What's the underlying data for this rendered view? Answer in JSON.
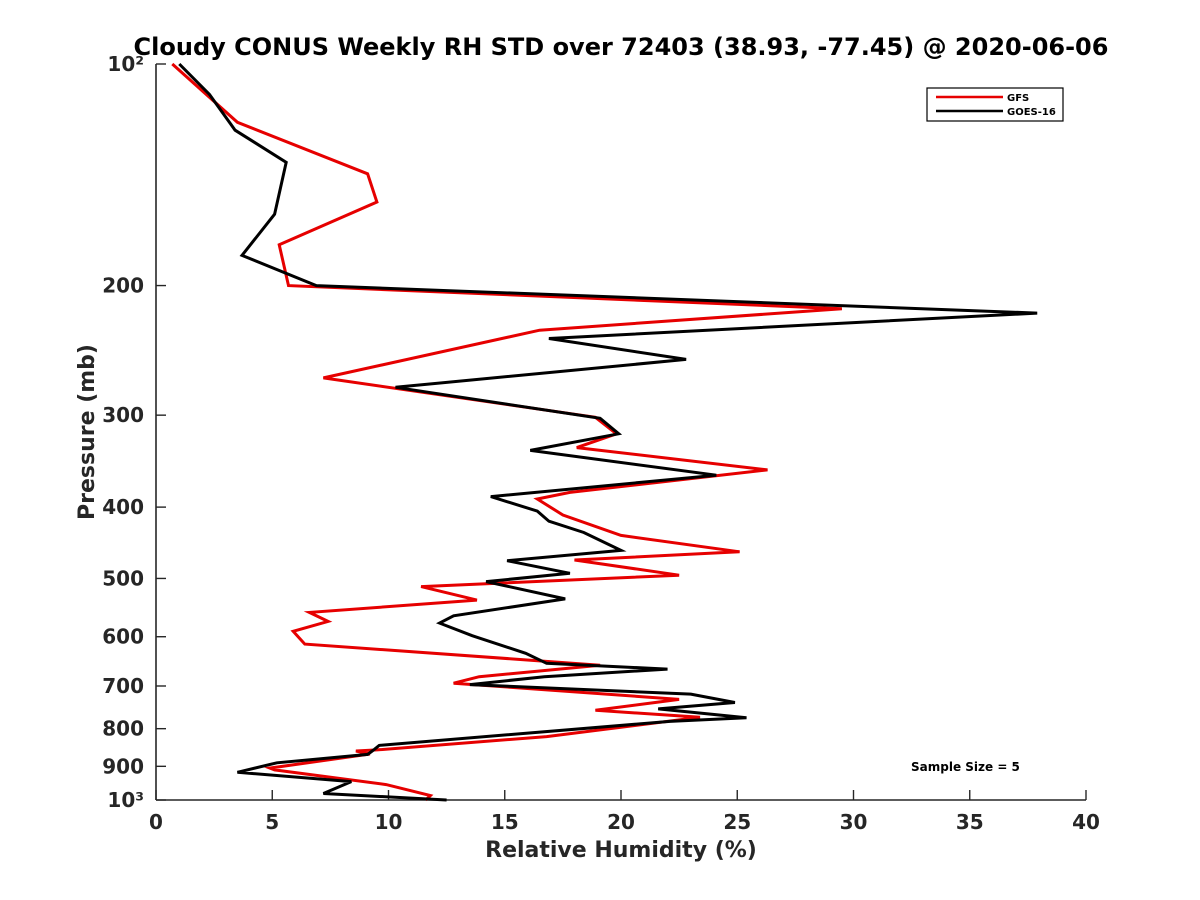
{
  "chart_data": {
    "type": "line",
    "title": "Cloudy CONUS Weekly RH STD over 72403 (38.93, -77.45) @ 2020-06-06",
    "xlabel": "Relative Humidity (%)",
    "ylabel": "Pressure (mb)",
    "xlim": [
      0,
      40
    ],
    "ylim": [
      100,
      1000
    ],
    "y_scale": "log",
    "y_reversed": true,
    "x_ticks": [
      0,
      5,
      10,
      15,
      20,
      25,
      30,
      35,
      40
    ],
    "x_tick_labels": [
      "0",
      "5",
      "10",
      "15",
      "20",
      "25",
      "30",
      "35",
      "40"
    ],
    "y_ticks": [
      100,
      200,
      300,
      400,
      500,
      600,
      700,
      800,
      900,
      1000
    ],
    "y_tick_labels": [
      "10²",
      "200",
      "300",
      "400",
      "500",
      "600",
      "700",
      "800",
      "900",
      "10³"
    ],
    "grid": false,
    "legend_position": "top-right",
    "series": [
      {
        "name": "GFS",
        "color": "#e60000",
        "points": [
          [
            0.7,
            100
          ],
          [
            3.5,
            120
          ],
          [
            9.1,
            141
          ],
          [
            9.5,
            154
          ],
          [
            5.3,
            176
          ],
          [
            5.7,
            200
          ],
          [
            29.5,
            215
          ],
          [
            16.5,
            230
          ],
          [
            7.2,
            267
          ],
          [
            18.9,
            302
          ],
          [
            19.8,
            318
          ],
          [
            18.1,
            332
          ],
          [
            26.3,
            356
          ],
          [
            17.8,
            382
          ],
          [
            16.4,
            390
          ],
          [
            17.5,
            410
          ],
          [
            20,
            437
          ],
          [
            25.1,
            460
          ],
          [
            18,
            472
          ],
          [
            22.5,
            495
          ],
          [
            11.4,
            513
          ],
          [
            13.8,
            535
          ],
          [
            6.6,
            556
          ],
          [
            7.4,
            572
          ],
          [
            5.9,
            590
          ],
          [
            6.4,
            614
          ],
          [
            19.1,
            656
          ],
          [
            13.9,
            680
          ],
          [
            12.8,
            694
          ],
          [
            22.5,
            730
          ],
          [
            18.9,
            755
          ],
          [
            23.4,
            772
          ],
          [
            16.8,
            820
          ],
          [
            9.5,
            855
          ],
          [
            8.6,
            858
          ],
          [
            9.2,
            866
          ],
          [
            4.9,
            905
          ],
          [
            5.1,
            910
          ],
          [
            9.9,
            953
          ],
          [
            11,
            972
          ],
          [
            11.8,
            986
          ],
          [
            11.6,
            1000
          ]
        ]
      },
      {
        "name": "GOES-16",
        "color": "#000000",
        "points": [
          [
            1,
            100
          ],
          [
            2.3,
            110
          ],
          [
            3.4,
            123
          ],
          [
            5.6,
            136
          ],
          [
            5.1,
            160
          ],
          [
            3.7,
            182
          ],
          [
            6.9,
            200
          ],
          [
            37.9,
            218
          ],
          [
            16.9,
            236
          ],
          [
            22.8,
            252
          ],
          [
            10.3,
            275
          ],
          [
            19.1,
            303
          ],
          [
            19.9,
            318
          ],
          [
            16.1,
            335
          ],
          [
            24.1,
            362
          ],
          [
            14.4,
            387
          ],
          [
            16.4,
            405
          ],
          [
            16.9,
            418
          ],
          [
            18.4,
            433
          ],
          [
            20,
            458
          ],
          [
            15.1,
            473
          ],
          [
            17.8,
            492
          ],
          [
            14.2,
            505
          ],
          [
            17.6,
            533
          ],
          [
            12.8,
            562
          ],
          [
            12.2,
            575
          ],
          [
            13.6,
            598
          ],
          [
            15.9,
            632
          ],
          [
            16.8,
            652
          ],
          [
            22,
            664
          ],
          [
            16.7,
            680
          ],
          [
            13.5,
            697
          ],
          [
            23,
            718
          ],
          [
            24.9,
            737
          ],
          [
            21.6,
            752
          ],
          [
            25.4,
            773
          ],
          [
            22.1,
            782
          ],
          [
            9.6,
            843
          ],
          [
            9.4,
            853
          ],
          [
            9.3,
            858
          ],
          [
            9.1,
            867
          ],
          [
            5.2,
            890
          ],
          [
            3.5,
            917
          ],
          [
            8.4,
            944
          ],
          [
            7.2,
            980
          ],
          [
            12.5,
            1000
          ]
        ]
      }
    ],
    "annotations": [
      "Sample Size = 5"
    ]
  }
}
